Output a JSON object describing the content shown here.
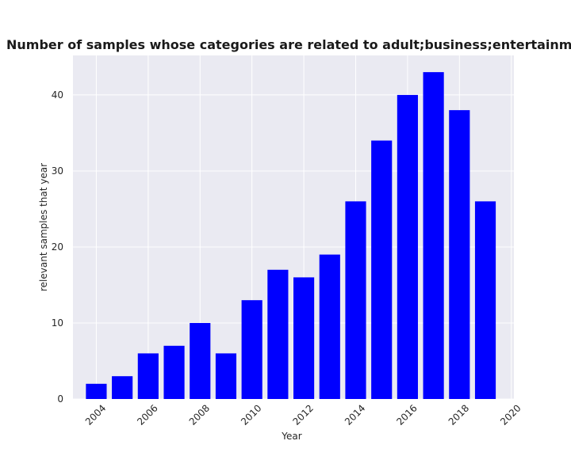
{
  "chart_data": {
    "type": "bar",
    "title": "Number of samples whose categories are related to adult;business;entertainment relevant samples that year in privacy policies",
    "xlabel": "Year",
    "ylabel": "relevant samples that year",
    "x": [
      2004,
      2005,
      2006,
      2007,
      2008,
      2009,
      2010,
      2011,
      2012,
      2013,
      2014,
      2015,
      2016,
      2017,
      2018,
      2019
    ],
    "values": [
      2,
      3,
      6,
      7,
      10,
      6,
      13,
      17,
      16,
      19,
      26,
      34,
      40,
      43,
      38,
      26
    ],
    "xticks": [
      2004,
      2006,
      2008,
      2010,
      2012,
      2014,
      2016,
      2018,
      2020
    ],
    "yticks": [
      0,
      10,
      20,
      30,
      40
    ],
    "xlim": [
      2003.1,
      2020.1
    ],
    "ylim": [
      0,
      45.2
    ],
    "grid": true,
    "bar_color": "#0000ff",
    "plot_background": "#eaeaf2",
    "grid_color": "#ffffff"
  }
}
